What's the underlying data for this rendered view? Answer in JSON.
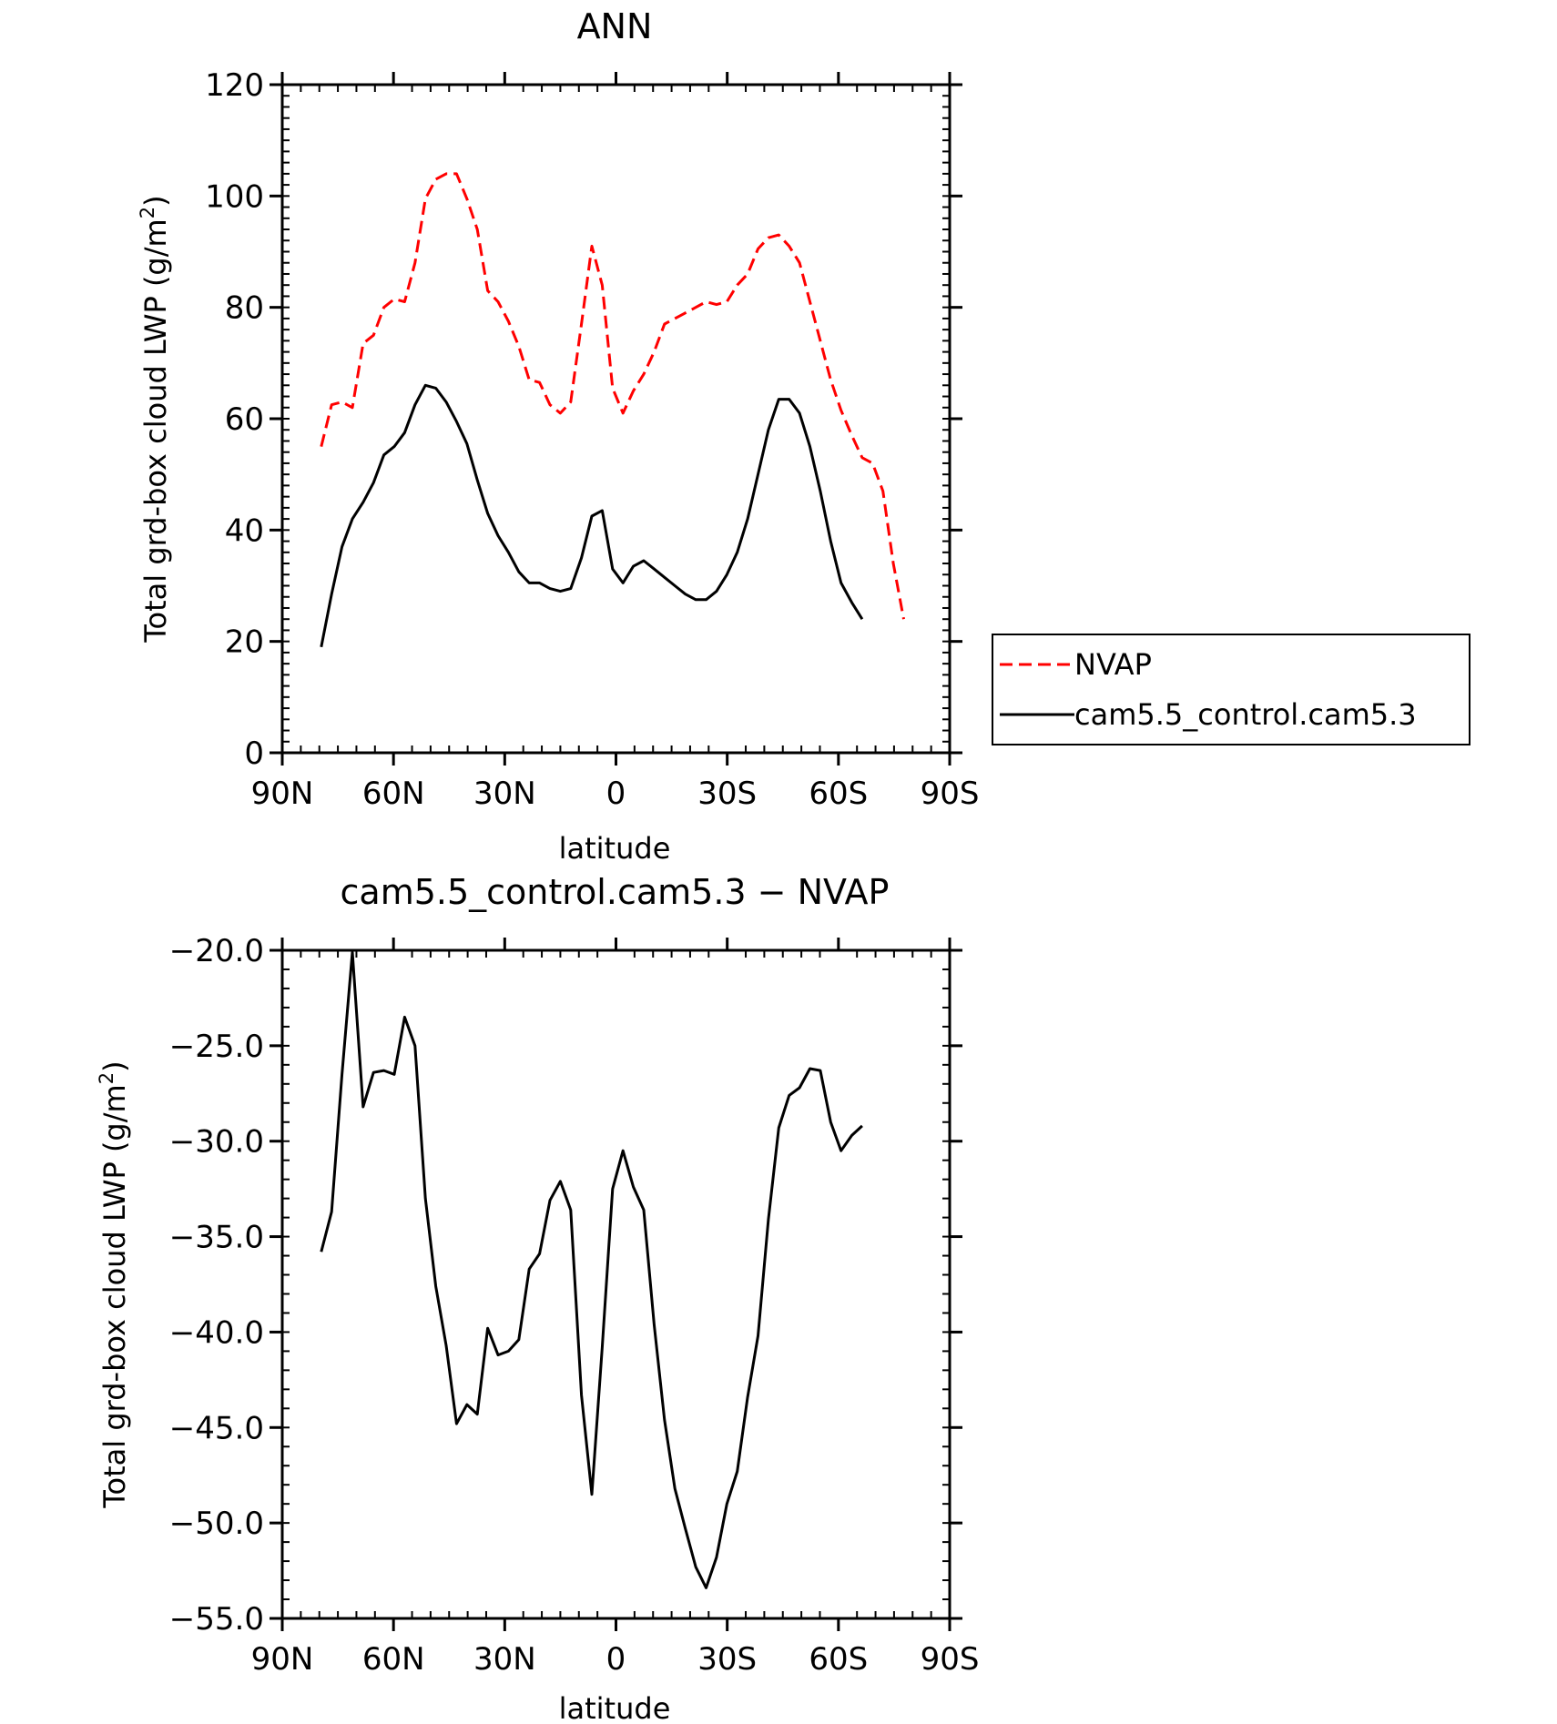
{
  "chart_data": [
    {
      "type": "line",
      "title": "ANN",
      "xlabel": "latitude",
      "ylabel": "Total grd-box cloud LWP (g/m",
      "ylabel_sup": "2",
      "ylabel_close": ")",
      "xlim": [
        -90,
        90
      ],
      "ylim": [
        0,
        120
      ],
      "xticks": [
        -90,
        -60,
        -30,
        0,
        30,
        60,
        90
      ],
      "xtick_labels": [
        "90N",
        "60N",
        "30N",
        "0",
        "30S",
        "60S",
        "90S"
      ],
      "yticks": [
        0,
        20,
        40,
        60,
        80,
        100,
        120
      ],
      "ytick_labels": [
        "0",
        "20",
        "40",
        "60",
        "80",
        "100",
        "120"
      ],
      "legend_position": "right",
      "series": [
        {
          "name": "NVAP",
          "color": "#ff0000",
          "dash": "dashed",
          "x": [
            -79.5,
            -76.7,
            -73.9,
            -71.1,
            -68.2,
            -65.4,
            -62.6,
            -59.8,
            -57.0,
            -54.2,
            -51.4,
            -48.6,
            -45.8,
            -43.0,
            -40.2,
            -37.4,
            -34.6,
            -31.8,
            -29.0,
            -26.2,
            -23.4,
            -20.6,
            -17.8,
            -15.0,
            -12.2,
            -9.3,
            -6.5,
            -3.7,
            -0.9,
            1.9,
            4.7,
            7.5,
            10.3,
            13.1,
            15.9,
            18.7,
            21.5,
            24.3,
            27.1,
            29.9,
            32.7,
            35.5,
            38.3,
            41.1,
            43.9,
            46.7,
            49.5,
            52.3,
            55.1,
            57.9,
            60.7,
            63.6,
            66.4,
            69.2,
            72.0,
            74.8,
            77.6
          ],
          "y": [
            55,
            62.5,
            63,
            62,
            73.5,
            75,
            80,
            81.5,
            81,
            88,
            99.5,
            103,
            104,
            104,
            99.5,
            94,
            83,
            81,
            77.5,
            73,
            67,
            66.5,
            62.5,
            61,
            63,
            77,
            91,
            84,
            65.5,
            61,
            65,
            68,
            72,
            77,
            78,
            79,
            80,
            81,
            80.5,
            81,
            84,
            86,
            90.5,
            92.5,
            93,
            91,
            88,
            81,
            74,
            67,
            61.5,
            57,
            53,
            52,
            47,
            34,
            24
          ]
        },
        {
          "name": "cam5.5_control.cam5.3",
          "color": "#000000",
          "dash": "solid",
          "x": [
            -79.5,
            -76.7,
            -73.9,
            -71.1,
            -68.2,
            -65.4,
            -62.6,
            -59.8,
            -57.0,
            -54.2,
            -51.4,
            -48.6,
            -45.8,
            -43.0,
            -40.2,
            -37.4,
            -34.6,
            -31.8,
            -29.0,
            -26.2,
            -23.4,
            -20.6,
            -17.8,
            -15.0,
            -12.2,
            -9.3,
            -6.5,
            -3.7,
            -0.9,
            1.9,
            4.7,
            7.5,
            10.3,
            13.1,
            15.9,
            18.7,
            21.5,
            24.3,
            27.1,
            29.9,
            32.7,
            35.5,
            38.3,
            41.1,
            43.9,
            46.7,
            49.5,
            52.3,
            55.1,
            57.9,
            60.7,
            63.6,
            66.4
          ],
          "y": [
            19,
            28.5,
            37,
            42,
            45,
            48.5,
            53.5,
            55,
            57.5,
            62.5,
            66,
            65.5,
            63,
            59.5,
            55.5,
            49,
            43,
            39,
            36,
            32.5,
            30.5,
            30.5,
            29.5,
            29,
            29.5,
            35,
            42.5,
            43.5,
            33,
            30.5,
            33.5,
            34.5,
            33,
            31.5,
            30,
            28.5,
            27.5,
            27.5,
            29,
            32,
            36,
            42,
            50,
            58,
            63.5,
            63.5,
            61,
            55,
            47,
            38,
            30.5,
            27,
            24
          ]
        }
      ]
    },
    {
      "type": "line",
      "title": "cam5.5_control.cam5.3 − NVAP",
      "xlabel": "latitude",
      "ylabel": "Total grd-box cloud LWP (g/m",
      "ylabel_sup": "2",
      "ylabel_close": ")",
      "xlim": [
        -90,
        90
      ],
      "ylim": [
        -55,
        -20
      ],
      "xticks": [
        -90,
        -60,
        -30,
        0,
        30,
        60,
        90
      ],
      "xtick_labels": [
        "90N",
        "60N",
        "30N",
        "0",
        "30S",
        "60S",
        "90S"
      ],
      "yticks": [
        -55,
        -50,
        -45,
        -40,
        -35,
        -30,
        -25,
        -20
      ],
      "ytick_labels": [
        "−55.0",
        "−50.0",
        "−45.0",
        "−40.0",
        "−35.0",
        "−30.0",
        "−25.0",
        "−20.0"
      ],
      "series": [
        {
          "color": "#000000",
          "dash": "solid",
          "x": [
            -79.5,
            -76.7,
            -73.9,
            -71.1,
            -68.2,
            -65.4,
            -62.6,
            -59.8,
            -57.0,
            -54.2,
            -51.4,
            -48.6,
            -45.8,
            -43.0,
            -40.2,
            -37.4,
            -34.6,
            -31.8,
            -29.0,
            -26.2,
            -23.4,
            -20.6,
            -17.8,
            -15.0,
            -12.2,
            -9.3,
            -6.5,
            -3.7,
            -0.9,
            1.9,
            4.7,
            7.5,
            10.3,
            13.1,
            15.9,
            18.7,
            21.5,
            24.3,
            27.1,
            29.9,
            32.7,
            35.5,
            38.3,
            41.1,
            43.9,
            46.7,
            49.5,
            52.3,
            55.1,
            57.9,
            60.7,
            63.6,
            66.4
          ],
          "y": [
            -35.8,
            -33.7,
            -26.5,
            -20.1,
            -28.2,
            -26.4,
            -26.3,
            -26.5,
            -23.5,
            -25.0,
            -33.0,
            -37.6,
            -40.7,
            -44.8,
            -43.8,
            -44.3,
            -39.8,
            -41.2,
            -41.0,
            -40.4,
            -36.7,
            -35.9,
            -33.1,
            -32.1,
            -33.6,
            -43.3,
            -48.5,
            -40.8,
            -32.5,
            -30.5,
            -32.4,
            -33.6,
            -39.6,
            -44.6,
            -48.2,
            -50.3,
            -52.3,
            -53.4,
            -51.8,
            -49.0,
            -47.3,
            -43.4,
            -40.2,
            -34.1,
            -29.3,
            -27.6,
            -27.2,
            -26.2,
            -26.3,
            -29.0,
            -30.5,
            -29.7,
            -29.2
          ]
        }
      ]
    }
  ]
}
